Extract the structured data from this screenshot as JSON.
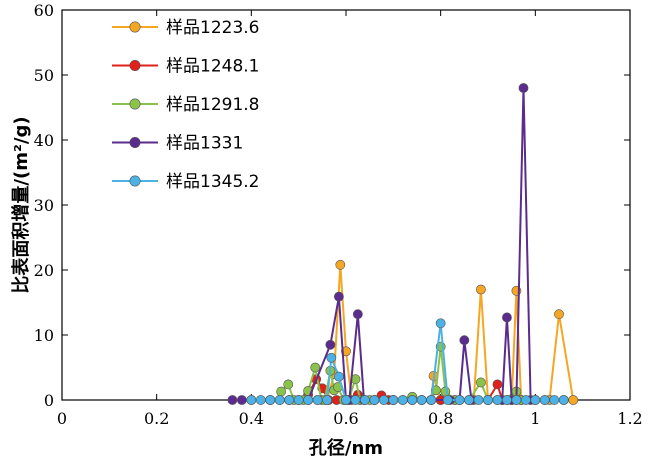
{
  "chart_data": {
    "type": "line",
    "xlabel": "孔径/nm",
    "ylabel": "比表面积增量/(m²/g)",
    "xlim": [
      0,
      1.2
    ],
    "ylim": [
      0,
      60
    ],
    "xticks": [
      0,
      0.2,
      0.4,
      0.6,
      0.8,
      1,
      1.2
    ],
    "xtick_labels": [
      "0",
      "0.2",
      "0.4",
      "0.6",
      "0.8",
      "1",
      "1.2"
    ],
    "yticks": [
      0,
      10,
      20,
      30,
      40,
      50,
      60
    ],
    "ytick_labels": [
      "0",
      "10",
      "20",
      "30",
      "40",
      "50",
      "60"
    ],
    "grid": false,
    "legend_position": "top-left",
    "series": [
      {
        "name": "样品1223.6",
        "color": "#f5a623",
        "points": [
          [
            0.48,
            0
          ],
          [
            0.5,
            0
          ],
          [
            0.52,
            0
          ],
          [
            0.54,
            0
          ],
          [
            0.56,
            0
          ],
          [
            0.575,
            4
          ],
          [
            0.588,
            20.8
          ],
          [
            0.6,
            7.5
          ],
          [
            0.612,
            0
          ],
          [
            0.63,
            0
          ],
          [
            0.66,
            0
          ],
          [
            0.7,
            0
          ],
          [
            0.74,
            0
          ],
          [
            0.76,
            0
          ],
          [
            0.78,
            0
          ],
          [
            0.785,
            3.7
          ],
          [
            0.8,
            0
          ],
          [
            0.84,
            0
          ],
          [
            0.87,
            0
          ],
          [
            0.885,
            17
          ],
          [
            0.9,
            0
          ],
          [
            0.92,
            0
          ],
          [
            0.94,
            0
          ],
          [
            0.95,
            0
          ],
          [
            0.96,
            16.8
          ],
          [
            0.97,
            0
          ],
          [
            1.0,
            0
          ],
          [
            1.03,
            0
          ],
          [
            1.05,
            13.2
          ],
          [
            1.08,
            0
          ]
        ]
      },
      {
        "name": "样品1248.1",
        "color": "#e0201b",
        "points": [
          [
            0.5,
            0
          ],
          [
            0.52,
            0.8
          ],
          [
            0.537,
            3.2
          ],
          [
            0.55,
            1.8
          ],
          [
            0.563,
            0
          ],
          [
            0.58,
            0
          ],
          [
            0.6,
            0
          ],
          [
            0.625,
            0.8
          ],
          [
            0.64,
            0
          ],
          [
            0.66,
            0
          ],
          [
            0.675,
            0.7
          ],
          [
            0.69,
            0
          ],
          [
            0.72,
            0
          ],
          [
            0.76,
            0
          ],
          [
            0.8,
            0
          ],
          [
            0.83,
            0
          ],
          [
            0.86,
            0
          ],
          [
            0.9,
            0
          ],
          [
            0.92,
            2.4
          ],
          [
            0.93,
            0
          ],
          [
            0.95,
            0
          ],
          [
            0.97,
            0
          ]
        ]
      },
      {
        "name": "样品1291.8",
        "color": "#8bc34a",
        "points": [
          [
            0.44,
            0
          ],
          [
            0.46,
            0
          ],
          [
            0.463,
            1.3
          ],
          [
            0.478,
            2.4
          ],
          [
            0.49,
            0
          ],
          [
            0.51,
            0
          ],
          [
            0.52,
            1.4
          ],
          [
            0.535,
            5
          ],
          [
            0.548,
            0
          ],
          [
            0.555,
            0
          ],
          [
            0.567,
            4.5
          ],
          [
            0.575,
            1.5
          ],
          [
            0.583,
            2
          ],
          [
            0.595,
            0
          ],
          [
            0.605,
            0
          ],
          [
            0.62,
            3.2
          ],
          [
            0.63,
            0
          ],
          [
            0.65,
            0
          ],
          [
            0.7,
            0
          ],
          [
            0.74,
            0.5
          ],
          [
            0.78,
            0
          ],
          [
            0.79,
            1.5
          ],
          [
            0.8,
            8.2
          ],
          [
            0.81,
            1.3
          ],
          [
            0.83,
            0
          ],
          [
            0.86,
            0
          ],
          [
            0.885,
            2.7
          ],
          [
            0.9,
            0
          ],
          [
            0.93,
            0
          ],
          [
            0.96,
            1.3
          ],
          [
            0.97,
            0
          ],
          [
            1.0,
            0
          ]
        ]
      },
      {
        "name": "样品1331",
        "color": "#5b2c8e",
        "points": [
          [
            0.36,
            0
          ],
          [
            0.38,
            0
          ],
          [
            0.4,
            0
          ],
          [
            0.44,
            0
          ],
          [
            0.48,
            0
          ],
          [
            0.52,
            0
          ],
          [
            0.567,
            8.5
          ],
          [
            0.585,
            15.9
          ],
          [
            0.6,
            0
          ],
          [
            0.607,
            0
          ],
          [
            0.625,
            13.2
          ],
          [
            0.638,
            0
          ],
          [
            0.66,
            0
          ],
          [
            0.7,
            0
          ],
          [
            0.74,
            0
          ],
          [
            0.78,
            0
          ],
          [
            0.82,
            0
          ],
          [
            0.84,
            0
          ],
          [
            0.85,
            9.2
          ],
          [
            0.865,
            0
          ],
          [
            0.9,
            0
          ],
          [
            0.93,
            0
          ],
          [
            0.94,
            12.7
          ],
          [
            0.95,
            0
          ],
          [
            0.96,
            0
          ],
          [
            0.975,
            48
          ],
          [
            0.99,
            0
          ],
          [
            1.02,
            0
          ],
          [
            1.06,
            0
          ]
        ]
      },
      {
        "name": "样品1345.2",
        "color": "#4cb2e6",
        "points": [
          [
            0.4,
            0
          ],
          [
            0.42,
            0
          ],
          [
            0.44,
            0
          ],
          [
            0.46,
            0
          ],
          [
            0.48,
            0
          ],
          [
            0.5,
            0
          ],
          [
            0.52,
            0
          ],
          [
            0.54,
            0
          ],
          [
            0.56,
            0
          ],
          [
            0.569,
            6.5
          ],
          [
            0.585,
            3.6
          ],
          [
            0.6,
            0
          ],
          [
            0.62,
            0
          ],
          [
            0.64,
            0
          ],
          [
            0.66,
            0
          ],
          [
            0.68,
            0
          ],
          [
            0.7,
            0
          ],
          [
            0.72,
            0
          ],
          [
            0.74,
            0
          ],
          [
            0.76,
            0
          ],
          [
            0.78,
            0
          ],
          [
            0.8,
            11.8
          ],
          [
            0.815,
            0
          ],
          [
            0.84,
            0
          ],
          [
            0.86,
            0
          ],
          [
            0.88,
            0
          ],
          [
            0.9,
            0
          ],
          [
            0.92,
            0
          ],
          [
            0.94,
            0
          ],
          [
            0.96,
            0
          ],
          [
            0.98,
            0
          ],
          [
            1.0,
            0
          ],
          [
            1.02,
            0
          ],
          [
            1.04,
            0
          ],
          [
            1.06,
            0
          ]
        ]
      }
    ]
  }
}
